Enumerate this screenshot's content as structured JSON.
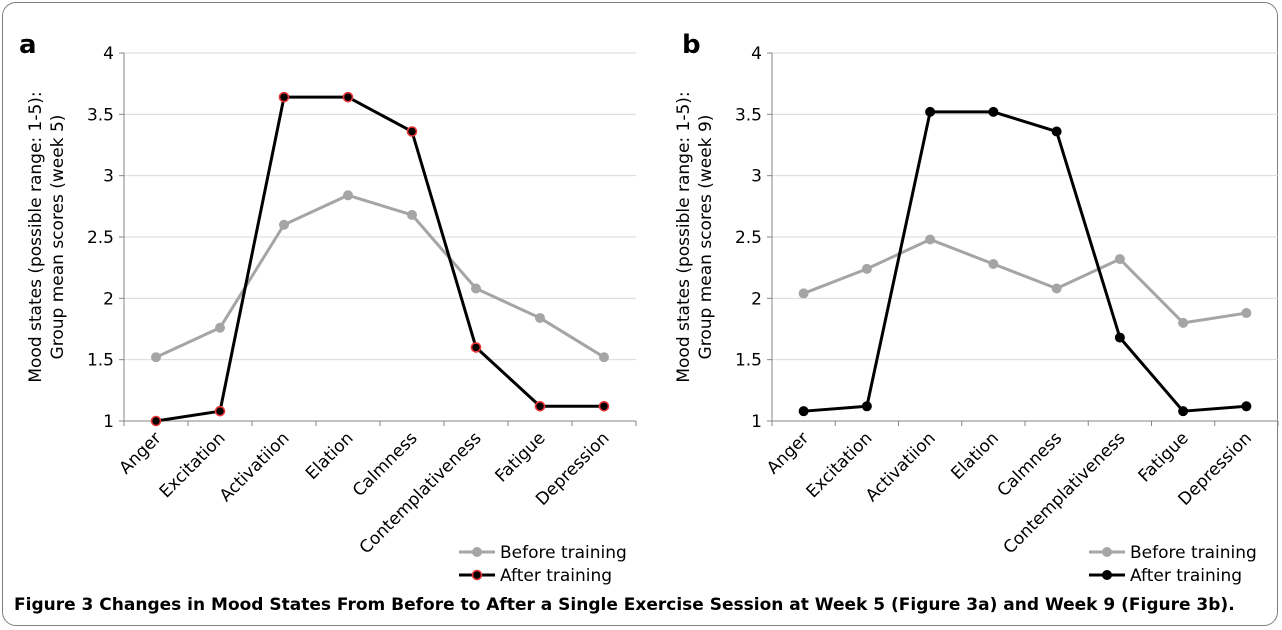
{
  "figure": {
    "caption_label": "Figure 3",
    "caption_text": " Changes in Mood States From Before to After a Single Exercise Session at Week 5 (Figure 3a) and Week 9 (Figure 3b)."
  },
  "chart_data": [
    {
      "panel_label": "a",
      "type": "line",
      "ylabel_line1": "Mood states (possible range: 1-5):",
      "ylabel_line2": "Group mean scores (week 5)",
      "ylim": [
        1,
        4
      ],
      "yticks": [
        "1",
        "1.5",
        "2",
        "2.5",
        "3",
        "3.5",
        "4"
      ],
      "grid": true,
      "legend_position": "bottom-right",
      "categories": [
        "Anger",
        "Excitation",
        "Activatiion",
        "Elation",
        "Calmness",
        "Contemplativeness",
        "Fatigue",
        "Depression"
      ],
      "series": [
        {
          "name": "Before training",
          "color": "#a5a5a5",
          "marker_fill": "#a5a5a5",
          "values": [
            1.52,
            1.76,
            2.6,
            2.84,
            2.68,
            2.08,
            1.84,
            1.52
          ]
        },
        {
          "name": "After training",
          "color": "#000000",
          "marker_fill": "#000000",
          "marker_edge": "#e8373a",
          "values": [
            1.0,
            1.08,
            3.64,
            3.64,
            3.36,
            1.6,
            1.12,
            1.12
          ]
        }
      ]
    },
    {
      "panel_label": "b",
      "type": "line",
      "ylabel_line1": "Mood states (possible range: 1-5):",
      "ylabel_line2": "Group mean scores (week 9)",
      "ylim": [
        1,
        4
      ],
      "yticks": [
        "1",
        "1.5",
        "2",
        "2.5",
        "3",
        "3.5",
        "4"
      ],
      "grid": true,
      "legend_position": "bottom-right",
      "categories": [
        "Anger",
        "Excitation",
        "Activatiion",
        "Elation",
        "Calmness",
        "Contemplativeness",
        "Fatigue",
        "Depression"
      ],
      "series": [
        {
          "name": "Before training",
          "color": "#a5a5a5",
          "marker_fill": "#a5a5a5",
          "values": [
            2.04,
            2.24,
            2.48,
            2.28,
            2.08,
            2.32,
            1.8,
            1.88
          ]
        },
        {
          "name": "After training",
          "color": "#000000",
          "marker_fill": "#000000",
          "values": [
            1.08,
            1.12,
            3.52,
            3.52,
            3.36,
            1.68,
            1.08,
            1.12
          ]
        }
      ]
    }
  ]
}
